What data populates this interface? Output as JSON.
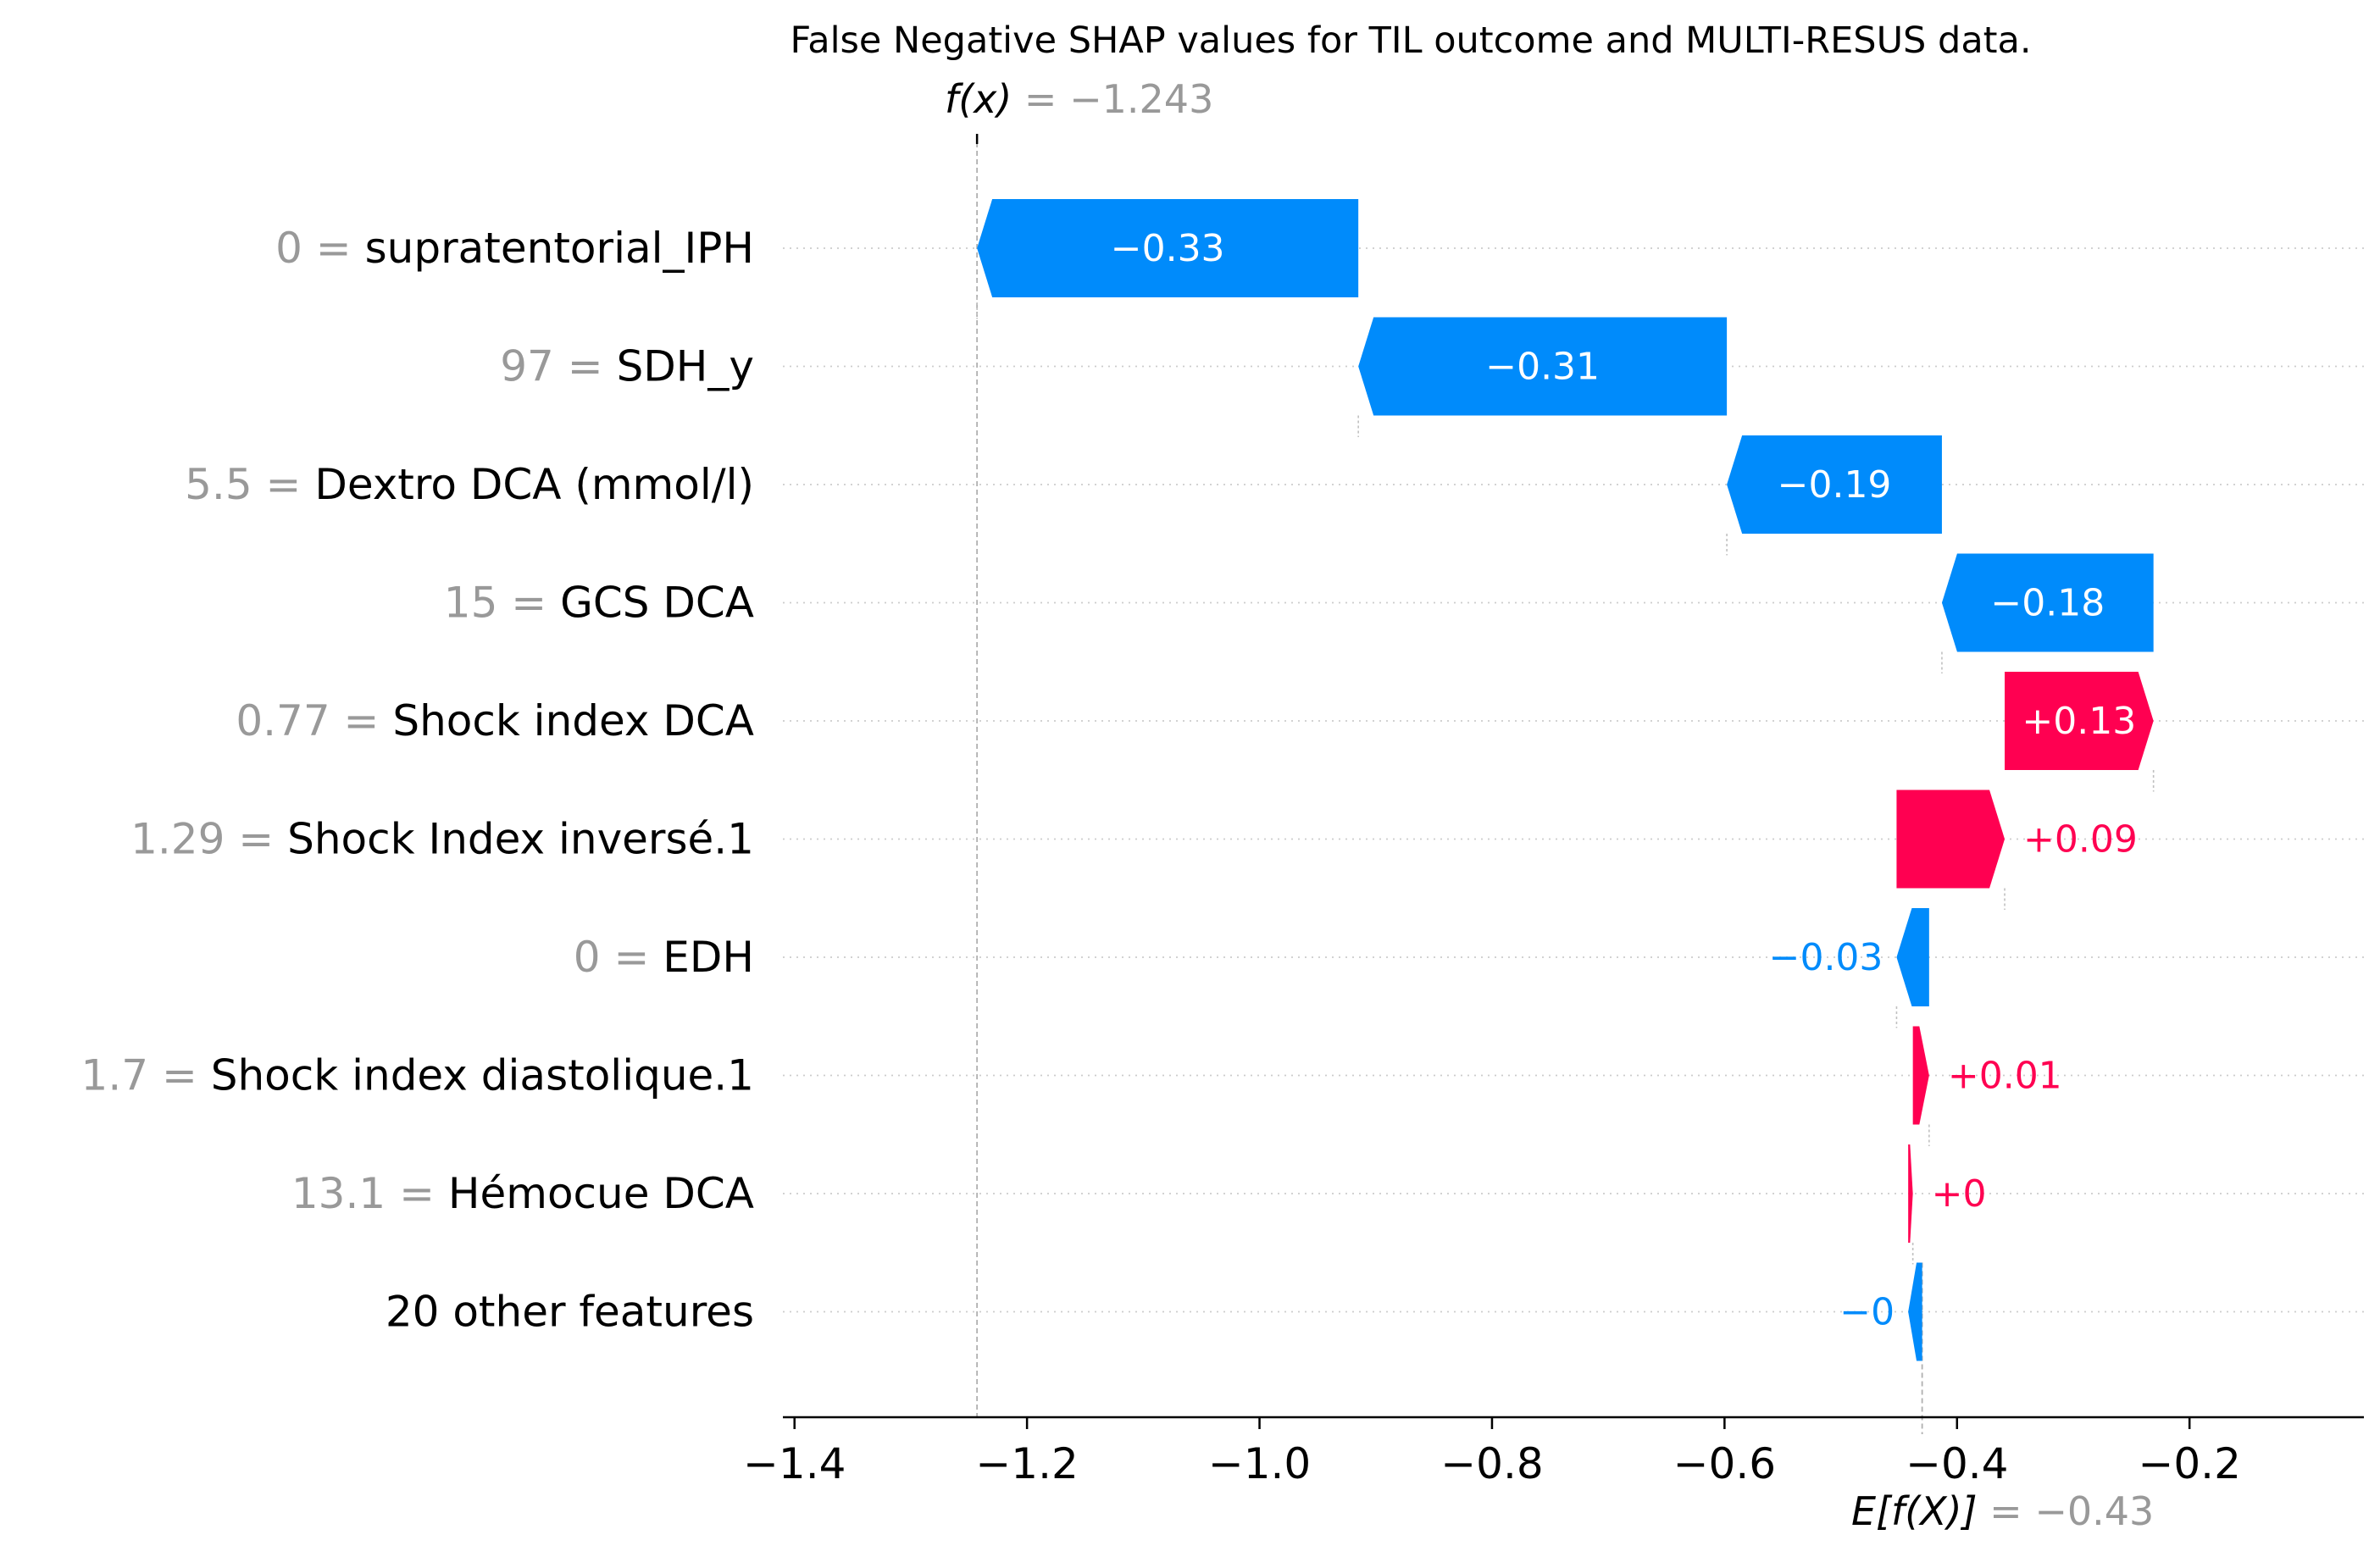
{
  "chart_data": {
    "type": "waterfall",
    "title": "False Negative SHAP values for TIL outcome and MULTI-RESUS data.",
    "fx": {
      "label": "f(x)",
      "value_text": " = −1.243",
      "value": -1.243
    },
    "base": {
      "label": "E[f(X)]",
      "value_text": " = −0.43",
      "value": -0.43
    },
    "xlim": [
      -1.41,
      -0.05
    ],
    "xticks": [
      -1.4,
      -1.2,
      -1.0,
      -0.8,
      -0.6,
      -0.4,
      -0.2
    ],
    "xtick_labels": [
      "−1.4",
      "−1.2",
      "−1.0",
      "−0.8",
      "−0.6",
      "−0.4",
      "−0.2"
    ],
    "features": [
      {
        "value": "0",
        "name": "supratentorial_IPH",
        "shap": -0.33,
        "start": -0.915,
        "end": -1.243,
        "label": "−0.33"
      },
      {
        "value": "97",
        "name": "SDH_y",
        "shap": -0.31,
        "start": -0.598,
        "end": -0.915,
        "label": "−0.31"
      },
      {
        "value": "5.5",
        "name": "Dextro DCA (mmol/l)",
        "shap": -0.19,
        "start": -0.413,
        "end": -0.598,
        "label": "−0.19"
      },
      {
        "value": "15",
        "name": "GCS DCA",
        "shap": -0.18,
        "start": -0.231,
        "end": -0.413,
        "label": "−0.18"
      },
      {
        "value": "0.77",
        "name": "Shock index DCA",
        "shap": 0.13,
        "start": -0.359,
        "end": -0.231,
        "label": "+0.13"
      },
      {
        "value": "1.29",
        "name": "Shock Index inversé.1",
        "shap": 0.09,
        "start": -0.452,
        "end": -0.359,
        "label": "+0.09"
      },
      {
        "value": "0",
        "name": "EDH",
        "shap": -0.03,
        "start": -0.424,
        "end": -0.452,
        "label": "−0.03"
      },
      {
        "value": "1.7",
        "name": "Shock index diastolique.1",
        "shap": 0.01,
        "start": -0.438,
        "end": -0.424,
        "label": "+0.01"
      },
      {
        "value": "13.1",
        "name": "Hémocue DCA",
        "shap": 0.0,
        "start": -0.442,
        "end": -0.438,
        "label": "+0"
      },
      {
        "value": "",
        "name": "20 other features",
        "shap": -0.0,
        "start": -0.43,
        "end": -0.442,
        "label": "−0"
      }
    ],
    "colors": {
      "positive": "#ff0051",
      "negative": "#008bfb",
      "text_gray": "#999999",
      "grid": "#cccccc"
    }
  }
}
